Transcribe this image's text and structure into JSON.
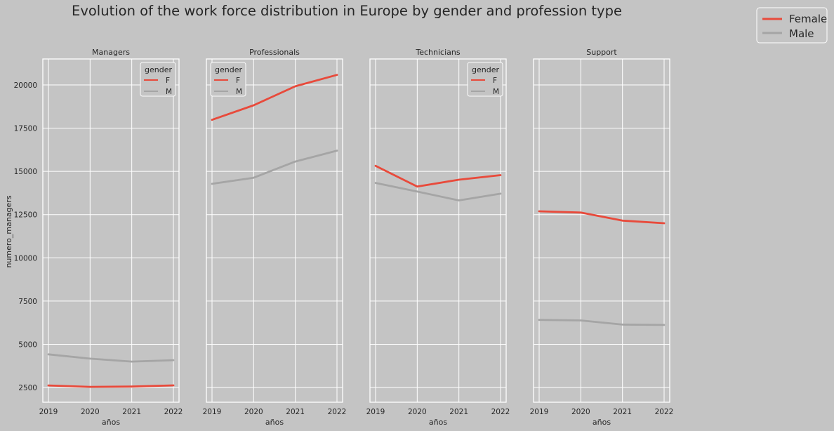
{
  "figure": {
    "title": "Evolution of the work force distribution in Europe by gender and profession type",
    "ylabel": "numero_managers",
    "xlabel": "años",
    "legend": {
      "placement": "upper-right",
      "entries": [
        {
          "label": "Female",
          "color": "#e84a3b"
        },
        {
          "label": "Male",
          "color": "#a5a5a5"
        }
      ]
    },
    "inner_legend": {
      "title": "gender",
      "entries": [
        {
          "label": "F",
          "color": "#e84a3b"
        },
        {
          "label": "M",
          "color": "#a5a5a5"
        }
      ]
    },
    "colors": {
      "background": "#c4c4c4",
      "female": "#e84a3b",
      "male": "#a5a5a5",
      "grid": "#ffffff"
    }
  },
  "chart_data": [
    {
      "type": "line",
      "title": "Managers",
      "x": [
        2019,
        2020,
        2021,
        2022
      ],
      "xlabel": "años",
      "ylabel": "numero_managers",
      "ylim": [
        1650,
        21500
      ],
      "yticks": [
        2500,
        5000,
        7500,
        10000,
        12500,
        15000,
        17500,
        20000
      ],
      "grid": true,
      "legend": "upper-right",
      "series": [
        {
          "name": "F",
          "values": [
            2620,
            2540,
            2555,
            2625
          ]
        },
        {
          "name": "M",
          "values": [
            4420,
            4170,
            4000,
            4080
          ]
        }
      ]
    },
    {
      "type": "line",
      "title": "Professionals",
      "x": [
        2019,
        2020,
        2021,
        2022
      ],
      "xlabel": "años",
      "ylim": [
        1650,
        21500
      ],
      "grid": true,
      "legend": "upper-left",
      "series": [
        {
          "name": "F",
          "values": [
            17980,
            18820,
            19920,
            20580
          ]
        },
        {
          "name": "M",
          "values": [
            14280,
            14630,
            15570,
            16200
          ]
        }
      ]
    },
    {
      "type": "line",
      "title": "Technicians",
      "x": [
        2019,
        2020,
        2021,
        2022
      ],
      "xlabel": "años",
      "ylim": [
        1650,
        21500
      ],
      "grid": true,
      "legend": "upper-right",
      "series": [
        {
          "name": "F",
          "values": [
            15320,
            14120,
            14520,
            14780
          ]
        },
        {
          "name": "M",
          "values": [
            14330,
            13830,
            13320,
            13710
          ]
        }
      ]
    },
    {
      "type": "line",
      "title": "Support",
      "x": [
        2019,
        2020,
        2021,
        2022
      ],
      "xlabel": "años",
      "ylim": [
        1650,
        21500
      ],
      "grid": true,
      "series": [
        {
          "name": "F",
          "values": [
            12690,
            12620,
            12150,
            12000
          ]
        },
        {
          "name": "M",
          "values": [
            6410,
            6380,
            6140,
            6120
          ]
        }
      ]
    }
  ]
}
